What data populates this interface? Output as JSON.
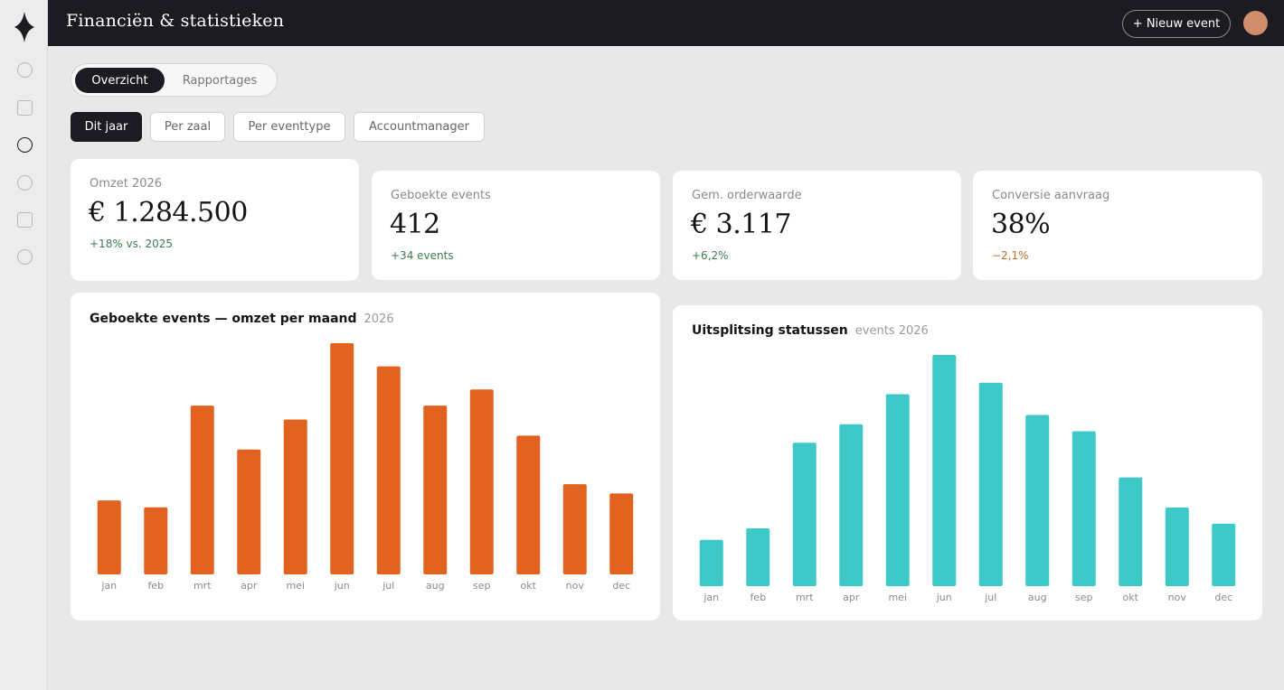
{
  "app": {
    "title": "Financiën & statistieken"
  },
  "header": {
    "new_event_label": "+ Nieuw event"
  },
  "sidebar": {
    "icons": [
      "nav-icon-1",
      "nav-icon-2",
      "nav-icon-3",
      "nav-icon-4",
      "nav-icon-5",
      "nav-icon-6"
    ],
    "active_index": 2
  },
  "tabs": {
    "overview": "Overzicht",
    "reports": "Rapportages"
  },
  "filters": [
    "Dit jaar",
    "Per zaal",
    "Per eventtype",
    "Accountmanager"
  ],
  "kpis": [
    {
      "label": "Omzet 2026",
      "value": "€ 1.284.500",
      "delta": "+18% vs. 2025",
      "trend": "positive"
    },
    {
      "label": "Geboekte events",
      "value": "412",
      "delta": "+34 events",
      "trend": "positive"
    },
    {
      "label": "Gem. orderwaarde",
      "value": "€ 3.117",
      "delta": "+6,2%",
      "trend": "positive"
    },
    {
      "label": "Conversie aanvraag",
      "value": "38%",
      "delta": "−2,1%",
      "trend": "negative"
    }
  ],
  "colors": {
    "accent_orange": "#e2621f",
    "accent_teal": "#3ec8c8",
    "dark": "#1c1b22",
    "positive": "#3a7d52",
    "negative": "#c4692a"
  },
  "chart_data": [
    {
      "type": "bar",
      "title": "Geboekte events — omzet per maand",
      "subtitle": "2026",
      "categories": [
        "jan",
        "feb",
        "mrt",
        "apr",
        "mei",
        "jun",
        "jul",
        "aug",
        "sep",
        "okt",
        "nov",
        "dec"
      ],
      "values": [
        32,
        29,
        73,
        54,
        67,
        100,
        90,
        73,
        80,
        60,
        39,
        35
      ],
      "ylim": [
        0,
        100
      ],
      "color": "#e2621f",
      "grid": false
    },
    {
      "type": "bar",
      "title": "Uitsplitsing statussen",
      "subtitle": "events 2026",
      "categories": [
        "jan",
        "feb",
        "mrt",
        "apr",
        "mei",
        "jun",
        "jul",
        "aug",
        "sep",
        "okt",
        "nov",
        "dec"
      ],
      "values": [
        20,
        25,
        62,
        70,
        83,
        100,
        88,
        74,
        67,
        47,
        34,
        27
      ],
      "ylim": [
        0,
        100
      ],
      "color": "#3ec8c8",
      "grid": false
    }
  ]
}
